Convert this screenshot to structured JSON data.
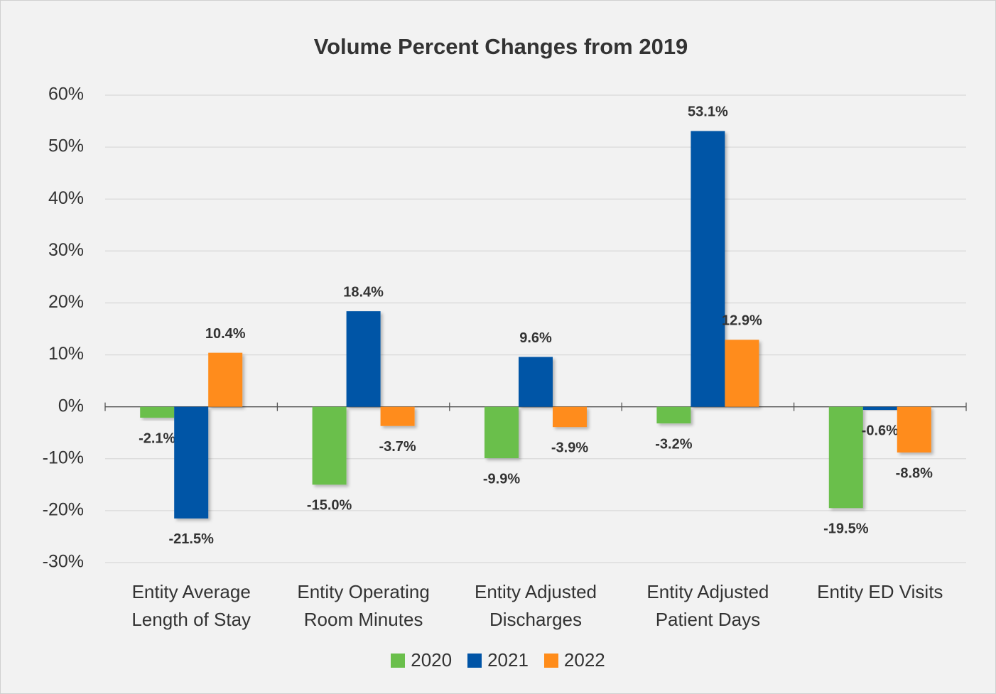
{
  "chart_data": {
    "type": "bar",
    "title": "Volume Percent Changes from 2019",
    "categories": [
      "Entity Average Length of Stay",
      "Entity Operating Room Minutes",
      "Entity Adjusted Discharges",
      "Entity Adjusted Patient Days",
      "Entity ED Visits"
    ],
    "series": [
      {
        "name": "2020",
        "color": "#6abf4b",
        "values": [
          -2.1,
          -15.0,
          -9.9,
          -3.2,
          -19.5
        ],
        "value_labels": [
          "-2.1%",
          "-15.0%",
          "-9.9%",
          "-3.2%",
          "-19.5%"
        ]
      },
      {
        "name": "2021",
        "color": "#0054a6",
        "values": [
          -21.5,
          18.4,
          9.6,
          53.1,
          -0.6
        ],
        "value_labels": [
          "-21.5%",
          "18.4%",
          "9.6%",
          "53.1%",
          "-0.6%"
        ]
      },
      {
        "name": "2022",
        "color": "#ff8c1a",
        "values": [
          10.4,
          -3.7,
          -3.9,
          12.9,
          -8.8
        ],
        "value_labels": [
          "10.4%",
          "-3.7%",
          "-3.9%",
          "12.9%",
          "-8.8%"
        ]
      }
    ],
    "ylim": [
      -30,
      60
    ],
    "yticks": [
      {
        "value": -30,
        "label": "-30%"
      },
      {
        "value": -20,
        "label": "-20%"
      },
      {
        "value": -10,
        "label": "-10%"
      },
      {
        "value": 0,
        "label": "0%"
      },
      {
        "value": 10,
        "label": "10%"
      },
      {
        "value": 20,
        "label": "20%"
      },
      {
        "value": 30,
        "label": "30%"
      },
      {
        "value": 40,
        "label": "40%"
      },
      {
        "value": 50,
        "label": "50%"
      },
      {
        "value": 60,
        "label": "60%"
      }
    ],
    "grid": true,
    "legend": "bottom"
  }
}
